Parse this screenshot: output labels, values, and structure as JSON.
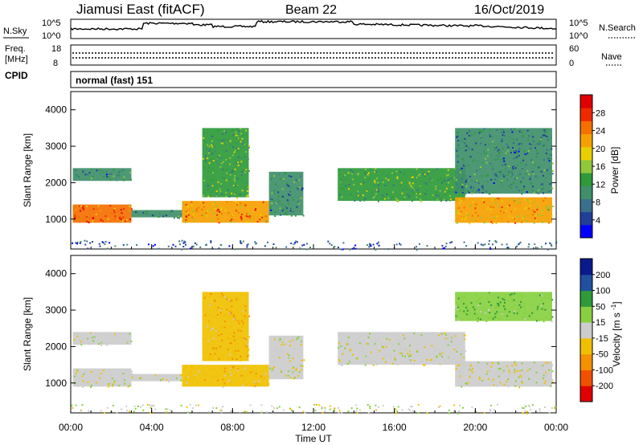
{
  "header": {
    "station": "Jiamusi East (fitACF)",
    "beam": "Beam 22",
    "date": "16/Oct/2019"
  },
  "nsky_panel": {
    "left_label": "N.Sky",
    "left_ticks": [
      "10^5",
      "10^0"
    ],
    "right_ticks": [
      "10^5",
      "10^0"
    ],
    "right_label": "N.Search"
  },
  "freq_panel": {
    "left_label_1": "Freq.",
    "left_label_2": "[MHz]",
    "left_ticks": [
      "18",
      "8"
    ],
    "right_ticks": [
      "60",
      "0"
    ],
    "right_label": "Nave"
  },
  "cpid": {
    "label": "CPID",
    "value": "normal (fast) 151"
  },
  "colors": {
    "power_scale": [
      "#0000ff",
      "#1f3f9a",
      "#3a6f8c",
      "#3f8f6a",
      "#2e9a3a",
      "#8fc83a",
      "#e8d000",
      "#f5a000",
      "#f47000",
      "#ef2a00",
      "#e00000"
    ],
    "velocity_scale": [
      "#e00000",
      "#f05000",
      "#f59000",
      "#f0c000",
      "#cccccc",
      "#88d040",
      "#2e9a3a",
      "#2050a0",
      "#0a1a8c"
    ]
  },
  "chart_data": [
    {
      "type": "heatmap",
      "panel": "power",
      "xlabel": "",
      "ylabel": "Slant Range [km]",
      "xlim": [
        "00:00",
        "24:00"
      ],
      "ylim": [
        180,
        4500
      ],
      "y_ticks": [
        "1000",
        "2000",
        "3000",
        "4000"
      ],
      "colorbar_label": "Power [dB]",
      "colorbar_ticks": [
        "4",
        "8",
        "12",
        "16",
        "20",
        "24",
        "28"
      ],
      "clim": [
        0,
        30
      ],
      "regions": [
        {
          "t_start": 0.1,
          "t_end": 3.0,
          "range_low": 900,
          "range_high": 1400,
          "power": 24
        },
        {
          "t_start": 0.1,
          "t_end": 3.0,
          "range_low": 2050,
          "range_high": 2400,
          "power": 8
        },
        {
          "t_start": 3.0,
          "t_end": 5.5,
          "range_low": 1050,
          "range_high": 1250,
          "power": 8
        },
        {
          "t_start": 5.5,
          "t_end": 9.8,
          "range_low": 900,
          "range_high": 1500,
          "power": 22
        },
        {
          "t_start": 6.5,
          "t_end": 8.8,
          "range_low": 1600,
          "range_high": 3500,
          "power": 12
        },
        {
          "t_start": 9.8,
          "t_end": 11.5,
          "range_low": 1100,
          "range_high": 2300,
          "power": 8
        },
        {
          "t_start": 13.2,
          "t_end": 19.5,
          "range_low": 1500,
          "range_high": 2400,
          "power": 12
        },
        {
          "t_start": 19.0,
          "t_end": 23.8,
          "range_low": 900,
          "range_high": 1600,
          "power": 20
        },
        {
          "t_start": 19.0,
          "t_end": 23.8,
          "range_low": 1700,
          "range_high": 3500,
          "power": 8
        }
      ]
    },
    {
      "type": "heatmap",
      "panel": "velocity",
      "xlabel": "Time UT",
      "ylabel": "Slant Range [km]",
      "x_ticks": [
        "00:00",
        "04:00",
        "08:00",
        "12:00",
        "16:00",
        "20:00",
        "00:00"
      ],
      "xlim": [
        "00:00",
        "24:00"
      ],
      "ylim": [
        180,
        4500
      ],
      "y_ticks": [
        "1000",
        "2000",
        "3000",
        "4000"
      ],
      "colorbar_label": "Velocity [m s^-1]",
      "colorbar_ticks": [
        "-200",
        "-100",
        "-50",
        "-15",
        "15",
        "50",
        "100",
        "200"
      ],
      "clim": [
        -250,
        250
      ],
      "regions": [
        {
          "t_start": 0.1,
          "t_end": 3.0,
          "range_low": 900,
          "range_high": 1400,
          "velocity": 0
        },
        {
          "t_start": 0.1,
          "t_end": 3.0,
          "range_low": 2050,
          "range_high": 2400,
          "velocity": 0
        },
        {
          "t_start": 3.0,
          "t_end": 5.5,
          "range_low": 1050,
          "range_high": 1250,
          "velocity": 0
        },
        {
          "t_start": 5.5,
          "t_end": 9.8,
          "range_low": 900,
          "range_high": 1500,
          "velocity": -30
        },
        {
          "t_start": 6.5,
          "t_end": 8.8,
          "range_low": 1600,
          "range_high": 3500,
          "velocity": -40
        },
        {
          "t_start": 9.8,
          "t_end": 11.5,
          "range_low": 1100,
          "range_high": 2300,
          "velocity": 0
        },
        {
          "t_start": 13.2,
          "t_end": 19.5,
          "range_low": 1500,
          "range_high": 2400,
          "velocity": 0
        },
        {
          "t_start": 19.0,
          "t_end": 23.8,
          "range_low": 900,
          "range_high": 1600,
          "velocity": 0
        },
        {
          "t_start": 19.0,
          "t_end": 23.8,
          "range_low": 2700,
          "range_high": 3500,
          "velocity": 40
        }
      ]
    }
  ]
}
